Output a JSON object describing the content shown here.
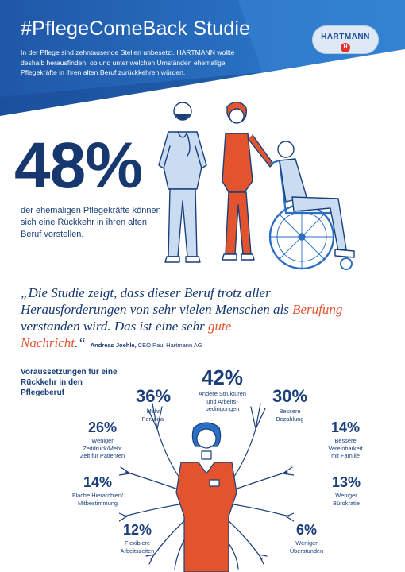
{
  "header": {
    "title": "#PflegeComeBack Studie",
    "intro": "In der Pflege sind zehntausende Stellen unbesetzt. HARTMANN wollte deshalb herausfinden, ob und unter welchen Umständen ehemalige Pflegekräfte in ihren alten Beruf zurückkehren würden.",
    "logo_text": "HARTMANN",
    "logo_mark": "H"
  },
  "headline": {
    "percent": "48%",
    "description": "der ehemaligen Pflegekräfte können sich eine Rückkehr in ihren alten Beruf vorstellen."
  },
  "quote": {
    "part1": "„Die Studie zeigt, dass dieser Beruf trotz aller Herausforderungen von sehr vielen Menschen als ",
    "highlight1": "Berufung",
    "part2": " verstanden wird. Das ist eine sehr ",
    "highlight2": "gute Nachricht",
    "part3": ".“",
    "author_name": "Andreas Joehle,",
    "author_role": " CEO Paul Hartmann AG"
  },
  "requirements": {
    "title": "Voraussetzungen für eine Rückkehr in den Pflegeberuf",
    "items": [
      {
        "pct": "42%",
        "label": "Andere Strukturen\nund Arbeits-\nbedingungen"
      },
      {
        "pct": "36%",
        "label": "Mehr\nPersonal"
      },
      {
        "pct": "30%",
        "label": "Bessere\nBezahlung"
      },
      {
        "pct": "26%",
        "label": "Weniger\nZeitdruck/Mehr\nZeit für Patienten"
      },
      {
        "pct": "14%",
        "label": "Bessere\nVereinbarkeit\nmit Familie"
      },
      {
        "pct": "14%",
        "label": "Flache Hierarchien/\nMitbestimmung"
      },
      {
        "pct": "13%",
        "label": "Weniger\nBürokratie"
      },
      {
        "pct": "12%",
        "label": "Flexiblere\nArbeitszeiten"
      },
      {
        "pct": "6%",
        "label": "Weniger\nÜberstunden"
      }
    ]
  },
  "colors": {
    "primary_blue": "#1b4f9c",
    "dark_blue": "#17386e",
    "accent_orange": "#e2532e",
    "light_blue": "#c9dcf2"
  }
}
